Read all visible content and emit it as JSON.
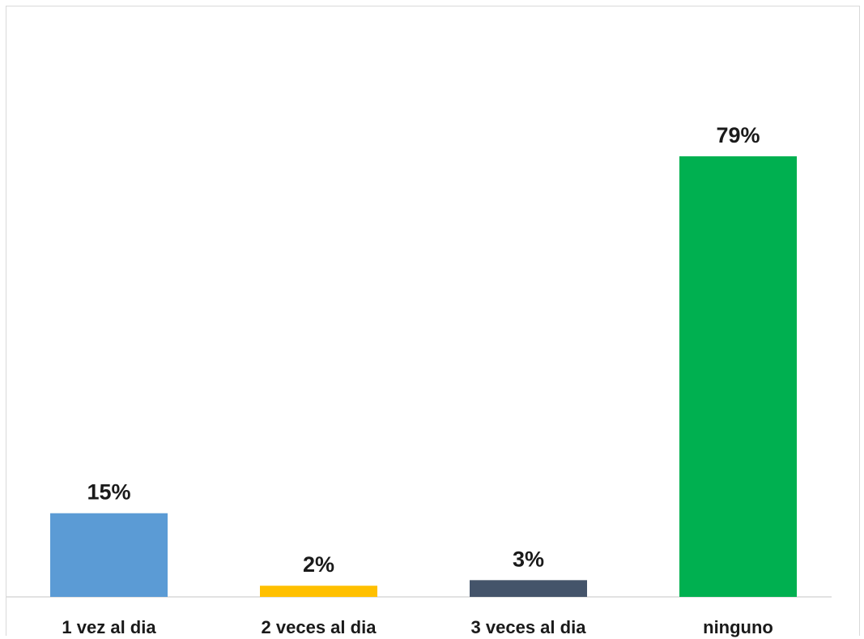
{
  "chart_data": {
    "type": "bar",
    "categories": [
      "1 vez al dia",
      "2 veces al dia",
      "3 veces al dia",
      "ninguno"
    ],
    "values": [
      15,
      2,
      3,
      79
    ],
    "data_labels": [
      "15%",
      "2%",
      "3%",
      "79%"
    ],
    "colors": [
      "#5b9bd5",
      "#ffc000",
      "#44546a",
      "#00b050"
    ],
    "ylim": [
      0,
      100
    ],
    "grid": false,
    "legend": "none",
    "title": "",
    "xlabel": "",
    "ylabel": ""
  }
}
